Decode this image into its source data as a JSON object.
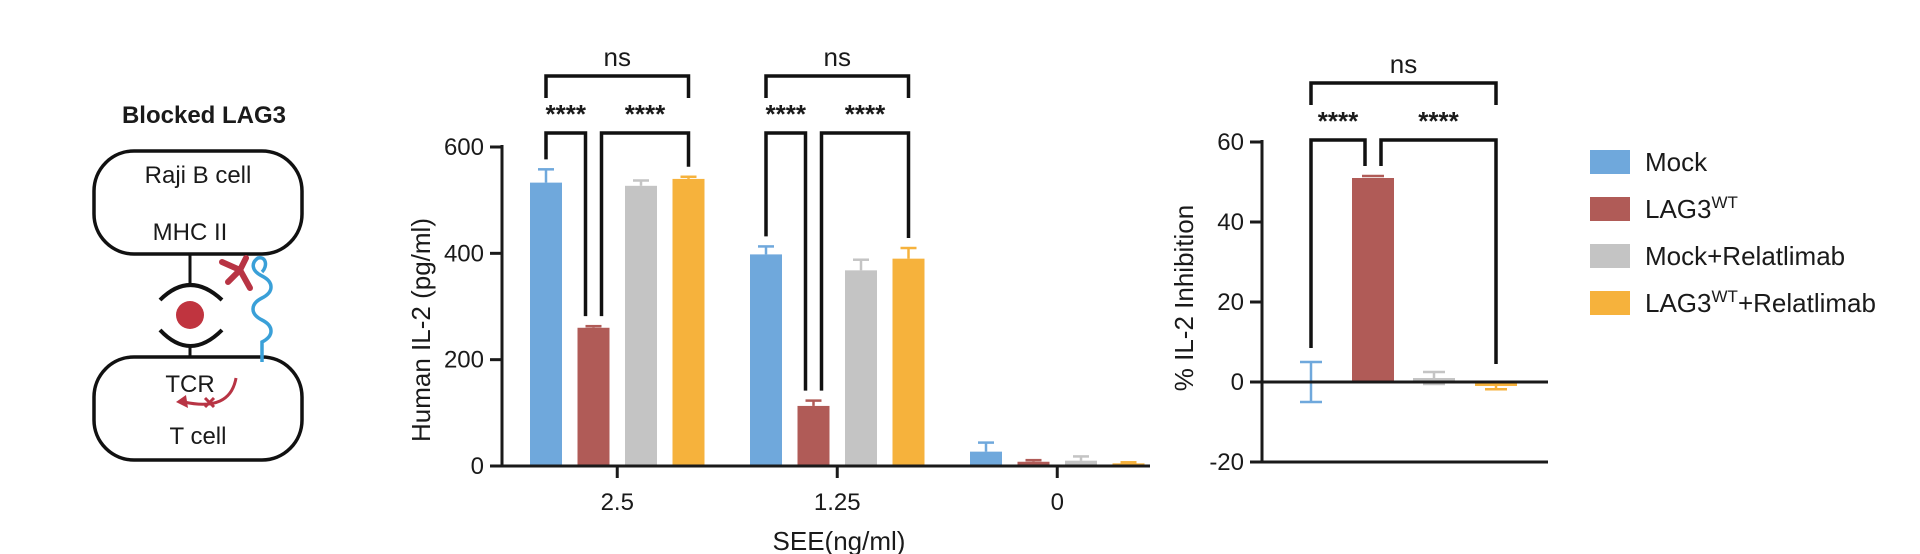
{
  "diagram": {
    "title": "Blocked LAG3",
    "top_cell": "Raji B cell",
    "mhc": "MHC II",
    "tcr": "TCR",
    "bottom_cell": "T cell",
    "colors": {
      "mhc_ball": "#c0343f",
      "antibody": "#b83444",
      "lag3": "#3aa0d8",
      "arrow": "#b83444"
    }
  },
  "legend": {
    "items": [
      {
        "label": "Mock",
        "color": "#6fa8dc"
      },
      {
        "label": "LAG3",
        "sup": "WT",
        "suffix": "",
        "color": "#b05b57"
      },
      {
        "label": "Mock+Relatlimab",
        "color": "#c4c4c4"
      },
      {
        "label": "LAG3",
        "sup": "WT",
        "suffix": "+Relatlimab",
        "color": "#f6b23c"
      }
    ]
  },
  "chart_data": [
    {
      "type": "bar",
      "xlabel": "SEE(ng/ml)",
      "ylabel": "Human IL-2 (pg/ml)",
      "ylim": [
        0,
        600
      ],
      "yticks": [
        0,
        200,
        400,
        600
      ],
      "categories": [
        "2.5",
        "1.25",
        "0"
      ],
      "series": [
        {
          "name": "Mock",
          "values": [
            533,
            398,
            27
          ],
          "errors": [
            25,
            15,
            17
          ]
        },
        {
          "name": "LAG3WT",
          "values": [
            260,
            113,
            8
          ],
          "errors": [
            3,
            10,
            3
          ]
        },
        {
          "name": "Mock+Relatlimab",
          "values": [
            527,
            368,
            10
          ],
          "errors": [
            10,
            20,
            8
          ]
        },
        {
          "name": "LAG3WT+Relatlimab",
          "values": [
            540,
            390,
            5
          ],
          "errors": [
            4,
            20,
            2
          ]
        }
      ],
      "annotations": [
        {
          "category": 0,
          "from": 0,
          "to": 1,
          "label": "****",
          "level": 1
        },
        {
          "category": 0,
          "from": 1,
          "to": 3,
          "label": "****",
          "level": 1
        },
        {
          "category": 0,
          "from": 0,
          "to": 3,
          "label": "ns",
          "level": 2
        },
        {
          "category": 1,
          "from": 0,
          "to": 1,
          "label": "****",
          "level": 1
        },
        {
          "category": 1,
          "from": 1,
          "to": 3,
          "label": "****",
          "level": 1
        },
        {
          "category": 1,
          "from": 0,
          "to": 3,
          "label": "ns",
          "level": 2
        }
      ]
    },
    {
      "type": "bar",
      "xlabel": "",
      "ylabel": "% IL-2 Inhibition",
      "ylim": [
        -20,
        60
      ],
      "yticks": [
        -20,
        0,
        20,
        40,
        60
      ],
      "categories": [
        "Mock",
        "LAG3WT",
        "Mock+Relatlimab",
        "LAG3WT+Relatlimab"
      ],
      "values": [
        0,
        51,
        1,
        -1
      ],
      "errors": [
        5,
        0.5,
        1.5,
        0.8
      ],
      "annotations": [
        {
          "from": 0,
          "to": 1,
          "label": "****",
          "level": 1
        },
        {
          "from": 1,
          "to": 3,
          "label": "****",
          "level": 1
        },
        {
          "from": 0,
          "to": 3,
          "label": "ns",
          "level": 2
        }
      ]
    }
  ]
}
